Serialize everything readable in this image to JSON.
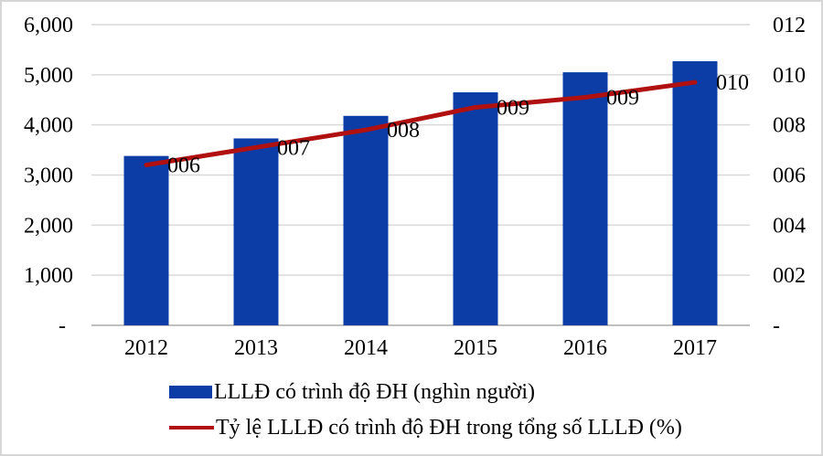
{
  "frame": {
    "background": "#ffffff",
    "border_color": "#d6d6d6",
    "gridline_color": "#d9d9d9",
    "axis_line_color": "#bfbfbf",
    "text_color": "#000000"
  },
  "chart_data": {
    "type": "bar",
    "subtype": "bar-line-combo",
    "title": "",
    "categories": [
      "2012",
      "2013",
      "2014",
      "2015",
      "2016",
      "2017"
    ],
    "series": [
      {
        "name": "LLLĐ có trình độ ĐH (nghìn người)",
        "type": "bar",
        "axis": "left",
        "color": "#0c3da6",
        "values": [
          3380,
          3730,
          4180,
          4650,
          5050,
          5270
        ]
      },
      {
        "name": "Tỷ lệ LLLĐ có trình độ ĐH trong tổng số LLLĐ (%)",
        "type": "line",
        "axis": "right",
        "color": "#b01010",
        "values": [
          6.4,
          7.1,
          7.8,
          8.7,
          9.1,
          9.7
        ],
        "point_labels": [
          "006",
          "007",
          "008",
          "009",
          "009",
          "010"
        ]
      }
    ],
    "left_axis": {
      "min": 0,
      "max": 6000,
      "tick_values": [
        0,
        1000,
        2000,
        3000,
        4000,
        5000,
        6000
      ],
      "tick_labels": [
        "-",
        "1,000",
        "2,000",
        "3,000",
        "4,000",
        "5,000",
        "6,000"
      ]
    },
    "right_axis": {
      "min": 0,
      "max": 12,
      "tick_values": [
        0,
        2,
        4,
        6,
        8,
        10,
        12
      ],
      "tick_labels": [
        "-",
        "002",
        "004",
        "006",
        "008",
        "010",
        "012"
      ]
    },
    "grid": true,
    "legend_position": "bottom"
  },
  "legend": {
    "items": [
      {
        "label": "LLLĐ có trình độ ĐH (nghìn người)",
        "swatch": "bar",
        "color": "#0c3da6"
      },
      {
        "label": "Tỷ lệ LLLĐ có trình độ ĐH trong tổng số LLLĐ (%)",
        "swatch": "line",
        "color": "#b01010"
      }
    ]
  }
}
